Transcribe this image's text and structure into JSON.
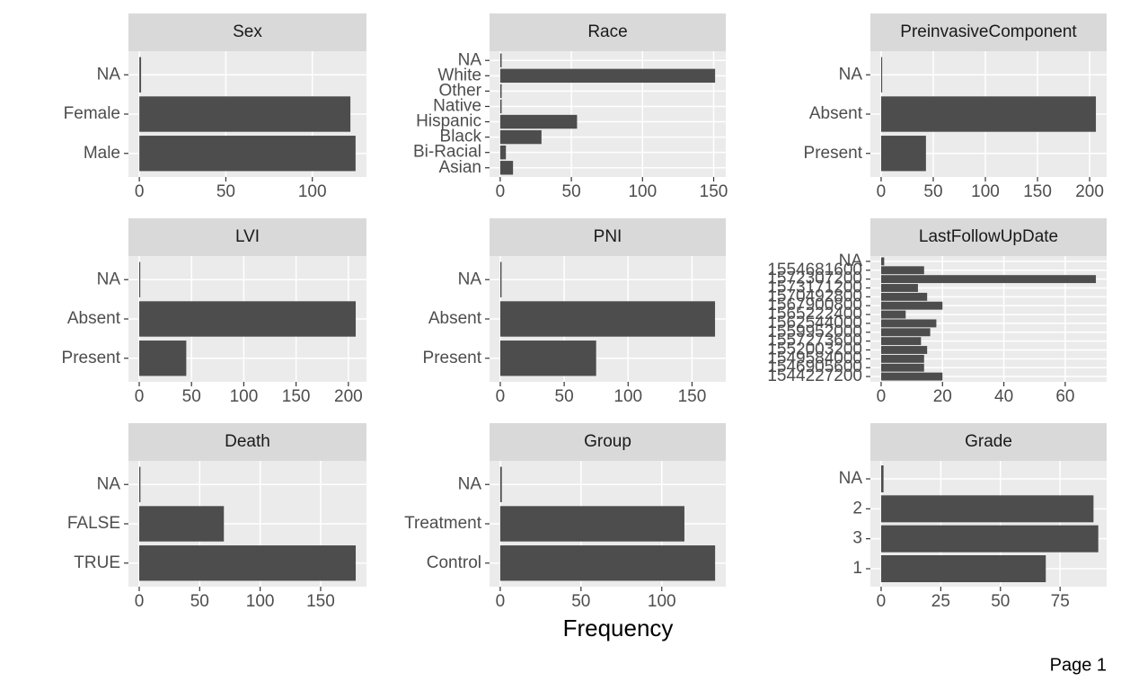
{
  "chart_data": [
    {
      "type": "bar",
      "orientation": "horizontal",
      "title": "Sex",
      "categories": [
        "Male",
        "Female",
        "NA"
      ],
      "values": [
        125,
        122,
        1
      ],
      "xlim": [
        -6.3,
        131.3
      ],
      "xticks": [
        0,
        50,
        100
      ],
      "color": "#4d4d4d",
      "grid": true
    },
    {
      "type": "bar",
      "orientation": "horizontal",
      "title": "Race",
      "categories": [
        "Asian",
        "Bi-Racial",
        "Black",
        "Hispanic",
        "Native",
        "Other",
        "White",
        "NA"
      ],
      "values": [
        9,
        4,
        29,
        54,
        1,
        1,
        151,
        1
      ],
      "xlim": [
        -7.5,
        158.5
      ],
      "xticks": [
        0,
        50,
        100,
        150
      ],
      "color": "#4d4d4d",
      "grid": true
    },
    {
      "type": "bar",
      "orientation": "horizontal",
      "title": "PreinvasiveComponent",
      "categories": [
        "Present",
        "Absent",
        "NA"
      ],
      "values": [
        43,
        206,
        1
      ],
      "xlim": [
        -10.3,
        216.3
      ],
      "xticks": [
        0,
        50,
        100,
        150,
        200
      ],
      "color": "#4d4d4d",
      "grid": true
    },
    {
      "type": "bar",
      "orientation": "horizontal",
      "title": "LVI",
      "categories": [
        "Present",
        "Absent",
        "NA"
      ],
      "values": [
        45,
        207,
        1
      ],
      "xlim": [
        -10.3,
        217.3
      ],
      "xticks": [
        0,
        50,
        100,
        150,
        200
      ],
      "color": "#4d4d4d",
      "grid": true
    },
    {
      "type": "bar",
      "orientation": "horizontal",
      "title": "PNI",
      "categories": [
        "Present",
        "Absent",
        "NA"
      ],
      "values": [
        75,
        168,
        1
      ],
      "xlim": [
        -8.4,
        176.4
      ],
      "xticks": [
        0,
        50,
        100,
        150
      ],
      "color": "#4d4d4d",
      "grid": true
    },
    {
      "type": "bar",
      "orientation": "horizontal",
      "title": "LastFollowUpDate",
      "categories": [
        "1544227200",
        "1546905600",
        "1549584000",
        "1552003200",
        "1557273600",
        "1559952000",
        "1562544000",
        "1565222400",
        "1567900800",
        "1570492800",
        "1573171200",
        "1572307200",
        "1554681600",
        "NA"
      ],
      "values": [
        20,
        14,
        14,
        15,
        13,
        16,
        18,
        8,
        20,
        15,
        12,
        70,
        14,
        1
      ],
      "xlim": [
        -3.5,
        73.5
      ],
      "xticks": [
        0,
        20,
        40,
        60
      ],
      "color": "#4d4d4d",
      "grid": true
    },
    {
      "type": "bar",
      "orientation": "horizontal",
      "title": "Death",
      "categories": [
        "TRUE",
        "FALSE",
        "NA"
      ],
      "values": [
        179,
        70,
        1
      ],
      "xlim": [
        -8.9,
        187.9
      ],
      "xticks": [
        0,
        50,
        100,
        150
      ],
      "color": "#4d4d4d",
      "grid": true
    },
    {
      "type": "bar",
      "orientation": "horizontal",
      "title": "Group",
      "categories": [
        "Control",
        "Treatment",
        "NA"
      ],
      "values": [
        133,
        114,
        1
      ],
      "xlim": [
        -6.6,
        139.6
      ],
      "xticks": [
        0,
        50,
        100
      ],
      "color": "#4d4d4d",
      "grid": true
    },
    {
      "type": "bar",
      "orientation": "horizontal",
      "title": "Grade",
      "categories": [
        "1",
        "3",
        "2",
        "NA"
      ],
      "values": [
        69,
        91,
        89,
        1
      ],
      "xlim": [
        -4.5,
        94.5
      ],
      "xticks": [
        0,
        25,
        50,
        75
      ],
      "color": "#4d4d4d",
      "grid": true
    }
  ],
  "x_label": "Frequency",
  "page_label": "Page 1"
}
